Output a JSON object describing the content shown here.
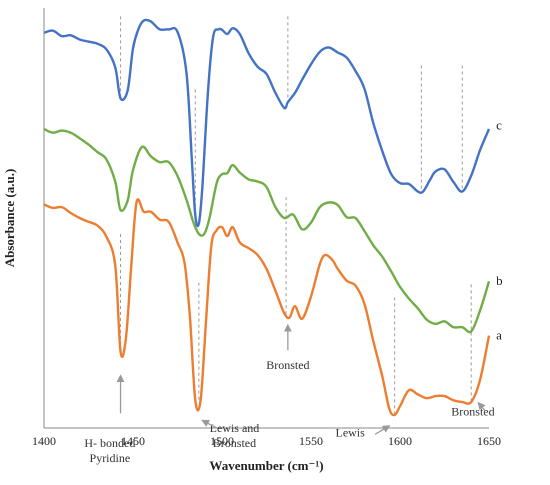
{
  "chart_data": {
    "type": "line",
    "title": "",
    "xlabel": "Wavenumber (cm⁻¹)",
    "ylabel": "Absorbance (a.u.)",
    "xlim": [
      1400,
      1650
    ],
    "ylim": [
      0,
      10
    ],
    "x_ticks": [
      1400,
      1450,
      1500,
      1550,
      1600,
      1650
    ],
    "y_ticks": [],
    "grid": false,
    "legend": "none",
    "series": [
      {
        "name": "c",
        "color": "#4472C4",
        "points": [
          [
            1400,
            9.41
          ],
          [
            1405,
            9.46
          ],
          [
            1410,
            9.33
          ],
          [
            1415,
            9.35
          ],
          [
            1420,
            9.25
          ],
          [
            1425,
            9.2
          ],
          [
            1430,
            9.15
          ],
          [
            1435,
            9.02
          ],
          [
            1440,
            8.59
          ],
          [
            1443,
            7.85
          ],
          [
            1447,
            8.04
          ],
          [
            1450,
            9.04
          ],
          [
            1453,
            9.49
          ],
          [
            1456,
            9.7
          ],
          [
            1460,
            9.68
          ],
          [
            1465,
            9.49
          ],
          [
            1470,
            9.49
          ],
          [
            1475,
            9.43
          ],
          [
            1480,
            8.47
          ],
          [
            1483,
            6.44
          ],
          [
            1485,
            5.06
          ],
          [
            1487,
            4.87
          ],
          [
            1489,
            5.75
          ],
          [
            1492,
            7.94
          ],
          [
            1495,
            9.31
          ],
          [
            1498,
            9.49
          ],
          [
            1500,
            9.48
          ],
          [
            1503,
            9.38
          ],
          [
            1506,
            9.52
          ],
          [
            1510,
            9.38
          ],
          [
            1515,
            8.92
          ],
          [
            1520,
            8.6
          ],
          [
            1525,
            8.43
          ],
          [
            1530,
            7.98
          ],
          [
            1535,
            7.62
          ],
          [
            1537,
            7.76
          ],
          [
            1541,
            7.98
          ],
          [
            1545,
            8.29
          ],
          [
            1550,
            8.66
          ],
          [
            1555,
            8.96
          ],
          [
            1560,
            9.06
          ],
          [
            1565,
            8.94
          ],
          [
            1570,
            8.82
          ],
          [
            1575,
            8.5
          ],
          [
            1580,
            8.08
          ],
          [
            1585,
            7.26
          ],
          [
            1590,
            6.6
          ],
          [
            1595,
            6.05
          ],
          [
            1600,
            5.83
          ],
          [
            1605,
            5.81
          ],
          [
            1610,
            5.63
          ],
          [
            1613,
            5.63
          ],
          [
            1617,
            5.92
          ],
          [
            1620,
            6.11
          ],
          [
            1625,
            6.16
          ],
          [
            1630,
            5.86
          ],
          [
            1635,
            5.63
          ],
          [
            1640,
            6.01
          ],
          [
            1645,
            6.62
          ],
          [
            1650,
            7.12
          ]
        ]
      },
      {
        "name": "b",
        "color": "#70AD47",
        "points": [
          [
            1400,
            7.12
          ],
          [
            1405,
            7.03
          ],
          [
            1410,
            7.08
          ],
          [
            1415,
            7.03
          ],
          [
            1420,
            6.9
          ],
          [
            1425,
            6.75
          ],
          [
            1430,
            6.57
          ],
          [
            1435,
            6.4
          ],
          [
            1440,
            5.87
          ],
          [
            1443,
            5.19
          ],
          [
            1447,
            5.42
          ],
          [
            1450,
            6.14
          ],
          [
            1455,
            6.69
          ],
          [
            1460,
            6.47
          ],
          [
            1465,
            6.33
          ],
          [
            1470,
            6.33
          ],
          [
            1475,
            6.0
          ],
          [
            1480,
            5.44
          ],
          [
            1484,
            4.89
          ],
          [
            1487,
            4.62
          ],
          [
            1490,
            4.62
          ],
          [
            1493,
            5.0
          ],
          [
            1497,
            5.83
          ],
          [
            1500,
            6.04
          ],
          [
            1503,
            6.07
          ],
          [
            1506,
            6.26
          ],
          [
            1510,
            6.08
          ],
          [
            1515,
            5.92
          ],
          [
            1520,
            5.87
          ],
          [
            1525,
            5.74
          ],
          [
            1530,
            5.26
          ],
          [
            1535,
            5.0
          ],
          [
            1540,
            5.08
          ],
          [
            1545,
            4.73
          ],
          [
            1550,
            4.89
          ],
          [
            1555,
            5.26
          ],
          [
            1560,
            5.37
          ],
          [
            1565,
            5.31
          ],
          [
            1570,
            5.02
          ],
          [
            1575,
            5.0
          ],
          [
            1580,
            4.69
          ],
          [
            1585,
            4.35
          ],
          [
            1590,
            4.08
          ],
          [
            1595,
            3.73
          ],
          [
            1600,
            3.36
          ],
          [
            1605,
            3.08
          ],
          [
            1610,
            2.85
          ],
          [
            1615,
            2.58
          ],
          [
            1620,
            2.48
          ],
          [
            1625,
            2.54
          ],
          [
            1630,
            2.4
          ],
          [
            1635,
            2.4
          ],
          [
            1640,
            2.3
          ],
          [
            1645,
            2.8
          ],
          [
            1650,
            3.49
          ]
        ]
      },
      {
        "name": "a",
        "color": "#ED7D31",
        "points": [
          [
            1400,
            5.32
          ],
          [
            1405,
            5.24
          ],
          [
            1410,
            5.26
          ],
          [
            1415,
            5.12
          ],
          [
            1420,
            5.0
          ],
          [
            1425,
            4.91
          ],
          [
            1430,
            4.82
          ],
          [
            1435,
            4.56
          ],
          [
            1440,
            3.88
          ],
          [
            1443,
            1.82
          ],
          [
            1446,
            2.13
          ],
          [
            1449,
            3.84
          ],
          [
            1452,
            5.38
          ],
          [
            1456,
            5.15
          ],
          [
            1460,
            5.15
          ],
          [
            1465,
            4.96
          ],
          [
            1470,
            4.91
          ],
          [
            1475,
            4.42
          ],
          [
            1479,
            3.92
          ],
          [
            1482,
            2.63
          ],
          [
            1485,
            0.66
          ],
          [
            1488,
            0.66
          ],
          [
            1491,
            2.54
          ],
          [
            1494,
            4.33
          ],
          [
            1497,
            4.71
          ],
          [
            1500,
            4.78
          ],
          [
            1503,
            4.57
          ],
          [
            1506,
            4.78
          ],
          [
            1510,
            4.42
          ],
          [
            1515,
            4.28
          ],
          [
            1520,
            4.12
          ],
          [
            1525,
            3.79
          ],
          [
            1530,
            3.27
          ],
          [
            1535,
            2.73
          ],
          [
            1538,
            2.63
          ],
          [
            1541,
            2.9
          ],
          [
            1545,
            2.6
          ],
          [
            1550,
            3.13
          ],
          [
            1555,
            3.91
          ],
          [
            1558,
            4.12
          ],
          [
            1562,
            4.0
          ],
          [
            1565,
            3.79
          ],
          [
            1570,
            3.51
          ],
          [
            1575,
            3.39
          ],
          [
            1580,
            2.96
          ],
          [
            1585,
            2.07
          ],
          [
            1590,
            1.24
          ],
          [
            1594,
            0.46
          ],
          [
            1597,
            0.31
          ],
          [
            1600,
            0.52
          ],
          [
            1605,
            0.9
          ],
          [
            1610,
            0.8
          ],
          [
            1615,
            0.71
          ],
          [
            1620,
            0.76
          ],
          [
            1625,
            0.76
          ],
          [
            1630,
            0.66
          ],
          [
            1635,
            0.62
          ],
          [
            1640,
            0.62
          ],
          [
            1645,
            1.15
          ],
          [
            1650,
            2.2
          ]
        ]
      }
    ],
    "reference_lines": [
      {
        "x": 1443,
        "series": "c"
      },
      {
        "x": 1485,
        "series": "c"
      },
      {
        "x": 1537,
        "series": "c"
      },
      {
        "x": 1612,
        "series": "c"
      },
      {
        "x": 1635,
        "series": "c"
      },
      {
        "x": 1443,
        "series": "a"
      },
      {
        "x": 1487,
        "series": "a"
      },
      {
        "x": 1536,
        "series": "a"
      },
      {
        "x": 1597,
        "series": "a"
      },
      {
        "x": 1640,
        "series": "a"
      }
    ],
    "series_labels": [
      {
        "text": "c",
        "x": 1654,
        "y": 7.2
      },
      {
        "text": "b",
        "x": 1654,
        "y": 3.5
      },
      {
        "text": "a",
        "x": 1654,
        "y": 2.2
      }
    ],
    "annotations": [
      {
        "lines": [
          "H- bonded",
          "Pyridine"
        ],
        "x": 1437,
        "y": -0.45,
        "arrow_to": [
          1443,
          1.25
        ]
      },
      {
        "lines": [
          "Lewis and",
          "Bronsted"
        ],
        "x": 1507,
        "y": -0.1,
        "arrow_to": [
          1489,
          0.2
        ]
      },
      {
        "lines": [
          "Bronsted"
        ],
        "x": 1537,
        "y": 1.4,
        "arrow_to": [
          1537,
          2.45
        ]
      },
      {
        "lines": [
          "Lewis"
        ],
        "x": 1572,
        "y": -0.2,
        "arrow_to": [
          1595,
          0.05
        ]
      },
      {
        "lines": [
          "Bronsted"
        ],
        "x": 1641,
        "y": 0.3,
        "arrow_to": [
          1643,
          0.55
        ]
      }
    ]
  }
}
